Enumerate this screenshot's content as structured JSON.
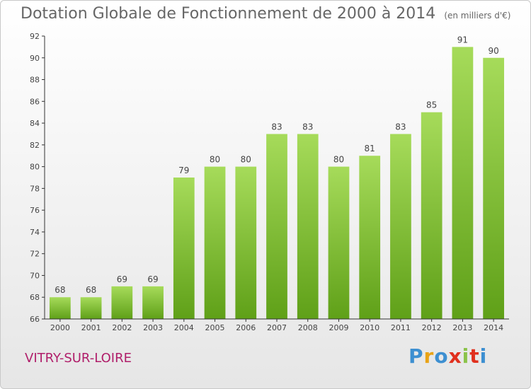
{
  "header": {
    "title": "Dotation Globale de Fonctionnement de 2000 à 2014",
    "unit": "(en milliers d'€)"
  },
  "footer": {
    "commune": "VITRY-SUR-LOIRE",
    "logo": {
      "letters": [
        "P",
        "r",
        "o",
        "x",
        "i",
        "t",
        "i"
      ],
      "colors": [
        "#3d8fd1",
        "#e8a317",
        "#3d8fd1",
        "#e0301e",
        "#8bc34a",
        "#e0301e",
        "#3d8fd1"
      ]
    }
  },
  "colors": {
    "bar_top": "#a6db5a",
    "bar_bottom": "#5fa018",
    "axis": "#333333"
  },
  "chart_data": {
    "type": "bar",
    "categories": [
      "2000",
      "2001",
      "2002",
      "2003",
      "2004",
      "2005",
      "2006",
      "2007",
      "2008",
      "2009",
      "2010",
      "2011",
      "2012",
      "2013",
      "2014"
    ],
    "values": [
      68,
      68,
      69,
      69,
      79,
      80,
      80,
      83,
      83,
      80,
      81,
      83,
      85,
      91,
      90
    ],
    "ylim": [
      66,
      92
    ],
    "yticks": [
      66,
      68,
      70,
      72,
      74,
      76,
      78,
      80,
      82,
      84,
      86,
      88,
      90,
      92
    ],
    "grid": false
  }
}
